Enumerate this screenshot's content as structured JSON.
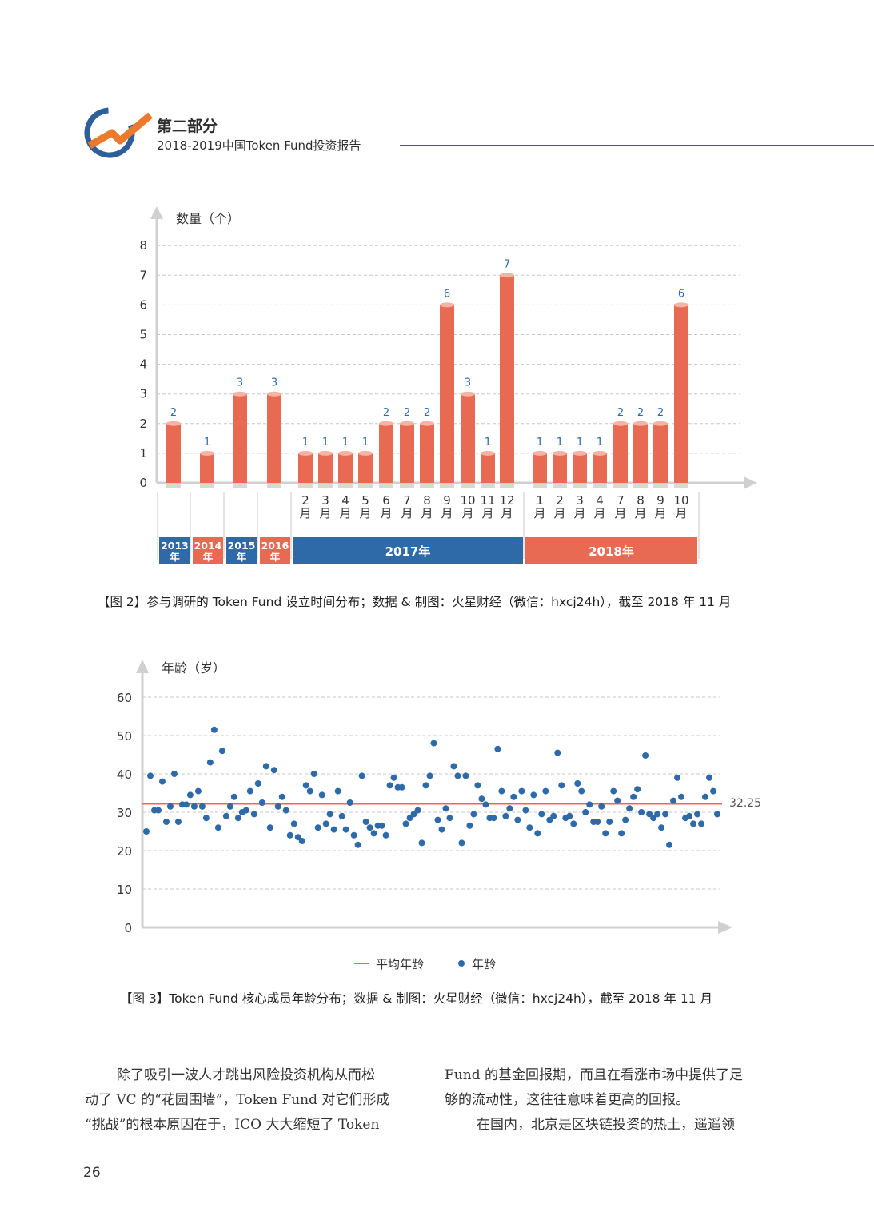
{
  "header": {
    "part_label": "第二部分",
    "report_title": "2018-2019中国Token Fund投资报告",
    "logo_icon": "chart-arrow-logo-icon",
    "accent_color": "#2e5f9a",
    "orange_color": "#ec7a2c"
  },
  "chart_data": [
    {
      "type": "bar",
      "ylabel": "数量（个）",
      "ylim": [
        0,
        8
      ],
      "yticks": [
        "0",
        "1",
        "2",
        "3",
        "4",
        "5",
        "6",
        "7",
        "8"
      ],
      "categories": [
        {
          "label": "",
          "value": 2
        },
        {
          "label": "",
          "value": 1
        },
        {
          "label": "",
          "value": 3
        },
        {
          "label": "",
          "value": 3
        },
        {
          "label": "2\n月",
          "value": 1
        },
        {
          "label": "3\n月",
          "value": 1
        },
        {
          "label": "4\n月",
          "value": 1
        },
        {
          "label": "5\n月",
          "value": 1
        },
        {
          "label": "6\n月",
          "value": 2
        },
        {
          "label": "7\n月",
          "value": 2
        },
        {
          "label": "8\n月",
          "value": 2
        },
        {
          "label": "9\n月",
          "value": 6
        },
        {
          "label": "10\n月",
          "value": 3
        },
        {
          "label": "11\n月",
          "value": 1
        },
        {
          "label": "12\n月",
          "value": 7
        },
        {
          "label": "1\n月",
          "value": 1
        },
        {
          "label": "2\n月",
          "value": 1
        },
        {
          "label": "3\n月",
          "value": 1
        },
        {
          "label": "4\n月",
          "value": 1
        },
        {
          "label": "7\n月",
          "value": 2
        },
        {
          "label": "8\n月",
          "value": 2
        },
        {
          "label": "9\n月",
          "value": 2
        },
        {
          "label": "10\n月",
          "value": 6
        }
      ],
      "years": [
        {
          "label": "2013\n年",
          "color": "#2e6aa8"
        },
        {
          "label": "2014\n年",
          "color": "#e86a52"
        },
        {
          "label": "2015\n年",
          "color": "#2e6aa8"
        },
        {
          "label": "2016\n年",
          "color": "#e86a52"
        },
        {
          "label": "2017年",
          "color": "#2e6aa8"
        },
        {
          "label": "2018年",
          "color": "#e86a52"
        }
      ],
      "bar_color": "#e86a52",
      "label_color": "#2e6aa8",
      "grid": true
    },
    {
      "type": "scatter",
      "ylabel": "年龄（岁）",
      "ylim": [
        0,
        60
      ],
      "yticks": [
        "0",
        "10",
        "20",
        "30",
        "40",
        "50",
        "60"
      ],
      "average": 32.25,
      "average_label": "32.25",
      "legend": [
        {
          "name": "平均年龄",
          "kind": "line",
          "color": "#e86a52"
        },
        {
          "name": "年龄",
          "kind": "dot",
          "color": "#2e6aa8"
        }
      ],
      "legend_position": "bottom",
      "y": [
        25,
        39.5,
        30.5,
        30.5,
        38,
        27.5,
        31.5,
        40,
        27.5,
        32,
        32,
        34.5,
        31.5,
        35.5,
        31.5,
        28.5,
        43,
        51.5,
        26,
        46,
        29,
        31.5,
        34,
        28.5,
        30,
        30.5,
        35.5,
        29.5,
        37.5,
        32.5,
        42,
        26,
        41,
        31.5,
        34,
        30.5,
        24,
        27,
        23.5,
        22.5,
        37,
        35.5,
        40,
        26,
        34.5,
        27,
        29.5,
        25.5,
        35.5,
        29,
        25.5,
        32.5,
        24,
        21.5,
        39.5,
        27.5,
        26,
        24.5,
        26.5,
        26.5,
        24,
        37,
        39,
        36.5,
        36.5,
        27,
        28.5,
        29.5,
        30.5,
        22,
        37,
        39.5,
        48,
        28,
        25.5,
        31,
        28.5,
        42,
        39.5,
        22,
        39.5,
        26.5,
        29.5,
        37,
        33.5,
        32,
        28.5,
        28.5,
        46.5,
        35.5,
        29,
        31,
        34,
        28,
        35.5,
        30.5,
        26,
        34.5,
        24.5,
        29.5,
        35.5,
        28,
        29,
        45.5,
        37,
        28.5,
        29,
        27,
        37.5,
        35.5,
        30,
        32,
        27.5,
        27.5,
        31.5,
        24.5,
        27.5,
        35.5,
        33,
        24.5,
        28,
        31,
        34,
        36,
        30,
        44.8,
        29.5,
        28.5,
        29.5,
        26,
        29.5,
        21.5,
        33,
        39,
        34,
        28.5,
        29,
        27,
        29.5,
        27,
        34,
        39,
        35.5,
        29.5
      ],
      "avg_color": "#e86a52",
      "dot_color": "#2e6aa8",
      "grid": true
    }
  ],
  "captions": {
    "fig2": "【图 2】参与调研的 Token Fund 设立时间分布；数据 & 制图：火星财经（微信：hxcj24h），截至 2018 年 11 月",
    "fig3": "【图 3】Token Fund 核心成员年龄分布；数据 & 制图：火星财经（微信：hxcj24h），截至 2018 年 11 月"
  },
  "body": {
    "left_lines": [
      "除了吸引一波人才跳出风险投资机构从而松",
      "动了 VC 的“花园围墙”，Token Fund 对它们形成",
      "“挑战”的根本原因在于，ICO 大大缩短了 Token"
    ],
    "right_lines": [
      "Fund 的基金回报期，而且在看涨市场中提供了足",
      "够的流动性，这往往意味着更高的回报。",
      "在国内，北京是区块链投资的热土，遥遥领"
    ]
  },
  "page_number": "26"
}
